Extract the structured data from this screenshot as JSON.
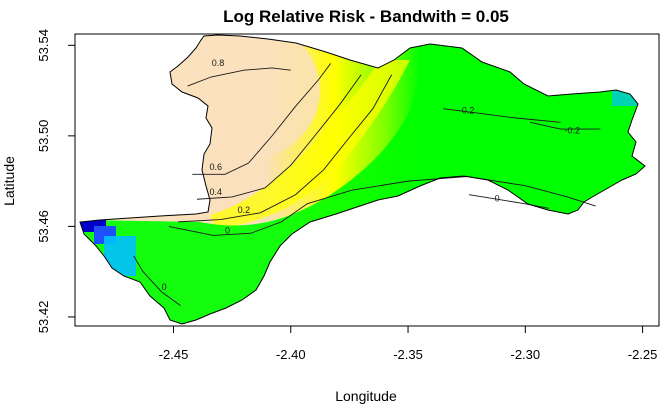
{
  "chart_data": {
    "type": "heatmap",
    "title": "Log Relative Risk - Bandwith = 0.05",
    "xlabel": "Longitude",
    "ylabel": "Latitude",
    "xlim": [
      -2.492,
      -2.243
    ],
    "ylim": [
      53.416,
      53.545
    ],
    "x_ticks": [
      -2.45,
      -2.4,
      -2.35,
      -2.3,
      -2.25
    ],
    "x_tick_labels": [
      "-2.45",
      "-2.40",
      "-2.35",
      "-2.30",
      "-2.25"
    ],
    "y_ticks": [
      53.42,
      53.46,
      53.5,
      53.54
    ],
    "y_tick_labels": [
      "53.42",
      "53.46",
      "53.50",
      "53.54"
    ],
    "colors": {
      "high": "#fae0bd",
      "mid": "#ffff00",
      "zero": "#00ff00",
      "low": "#00bfff",
      "lowest": "#0000c8",
      "outline": "#000000",
      "contour": "#1a1a1a"
    },
    "contour_levels": [
      "0.8",
      "0.6",
      "0.4",
      "0.2",
      "0",
      "-0.2"
    ],
    "contours": [
      {
        "label": "0.8",
        "points": [
          [
            -2.444,
            53.522
          ],
          [
            -2.434,
            53.526
          ],
          [
            -2.42,
            53.529
          ],
          [
            -2.408,
            53.53
          ],
          [
            -2.4,
            53.529
          ]
        ],
        "label_at": [
          -2.431,
          53.532
        ]
      },
      {
        "label": "0.6",
        "points": [
          [
            -2.442,
            53.483
          ],
          [
            -2.428,
            53.483
          ],
          [
            -2.418,
            53.488
          ],
          [
            -2.408,
            53.5
          ],
          [
            -2.398,
            53.513
          ],
          [
            -2.388,
            53.525
          ],
          [
            -2.383,
            53.532
          ]
        ],
        "label_at": [
          -2.432,
          53.486
        ]
      },
      {
        "label": "0.4",
        "points": [
          [
            -2.44,
            53.472
          ],
          [
            -2.425,
            53.473
          ],
          [
            -2.411,
            53.477
          ],
          [
            -2.4,
            53.487
          ],
          [
            -2.389,
            53.501
          ],
          [
            -2.379,
            53.514
          ],
          [
            -2.37,
            53.527
          ]
        ],
        "label_at": [
          -2.432,
          53.475
        ]
      },
      {
        "label": "0.2",
        "points": [
          [
            -2.448,
            53.462
          ],
          [
            -2.43,
            53.463
          ],
          [
            -2.413,
            53.466
          ],
          [
            -2.398,
            53.474
          ],
          [
            -2.386,
            53.485
          ],
          [
            -2.376,
            53.498
          ],
          [
            -2.365,
            53.512
          ],
          [
            -2.357,
            53.527
          ]
        ],
        "label_at": [
          -2.42,
          53.467
        ]
      },
      {
        "label": "0",
        "points": [
          [
            -2.452,
            53.46
          ],
          [
            -2.433,
            53.456
          ],
          [
            -2.417,
            53.457
          ],
          [
            -2.404,
            53.462
          ],
          [
            -2.393,
            53.47
          ],
          [
            -2.374,
            53.476
          ],
          [
            -2.35,
            53.48
          ],
          [
            -2.325,
            53.482
          ],
          [
            -2.3,
            53.478
          ],
          [
            -2.282,
            53.473
          ],
          [
            -2.27,
            53.469
          ]
        ],
        "label_at": [
          -2.427,
          53.458
        ]
      },
      {
        "label": "0",
        "points": [
          [
            -2.467,
            53.447
          ],
          [
            -2.463,
            53.44
          ],
          [
            -2.455,
            53.431
          ],
          [
            -2.447,
            53.425
          ]
        ],
        "label_at": [
          -2.454,
          53.433
        ]
      },
      {
        "label": "-0.2",
        "points": [
          [
            -2.335,
            53.512
          ],
          [
            -2.32,
            53.51
          ],
          [
            -2.305,
            53.508
          ],
          [
            -2.285,
            53.506
          ]
        ],
        "label_at": [
          -2.325,
          53.511
        ]
      },
      {
        "label": "-0.2",
        "points": [
          [
            -2.298,
            53.506
          ],
          [
            -2.285,
            53.503
          ],
          [
            -2.268,
            53.503
          ]
        ],
        "label_at": [
          -2.28,
          53.502
        ]
      },
      {
        "label": "0",
        "points": [
          [
            -2.324,
            53.474
          ],
          [
            -2.312,
            53.472
          ],
          [
            -2.3,
            53.47
          ],
          [
            -2.29,
            53.468
          ]
        ],
        "label_at": [
          -2.312,
          53.472
        ]
      }
    ]
  }
}
